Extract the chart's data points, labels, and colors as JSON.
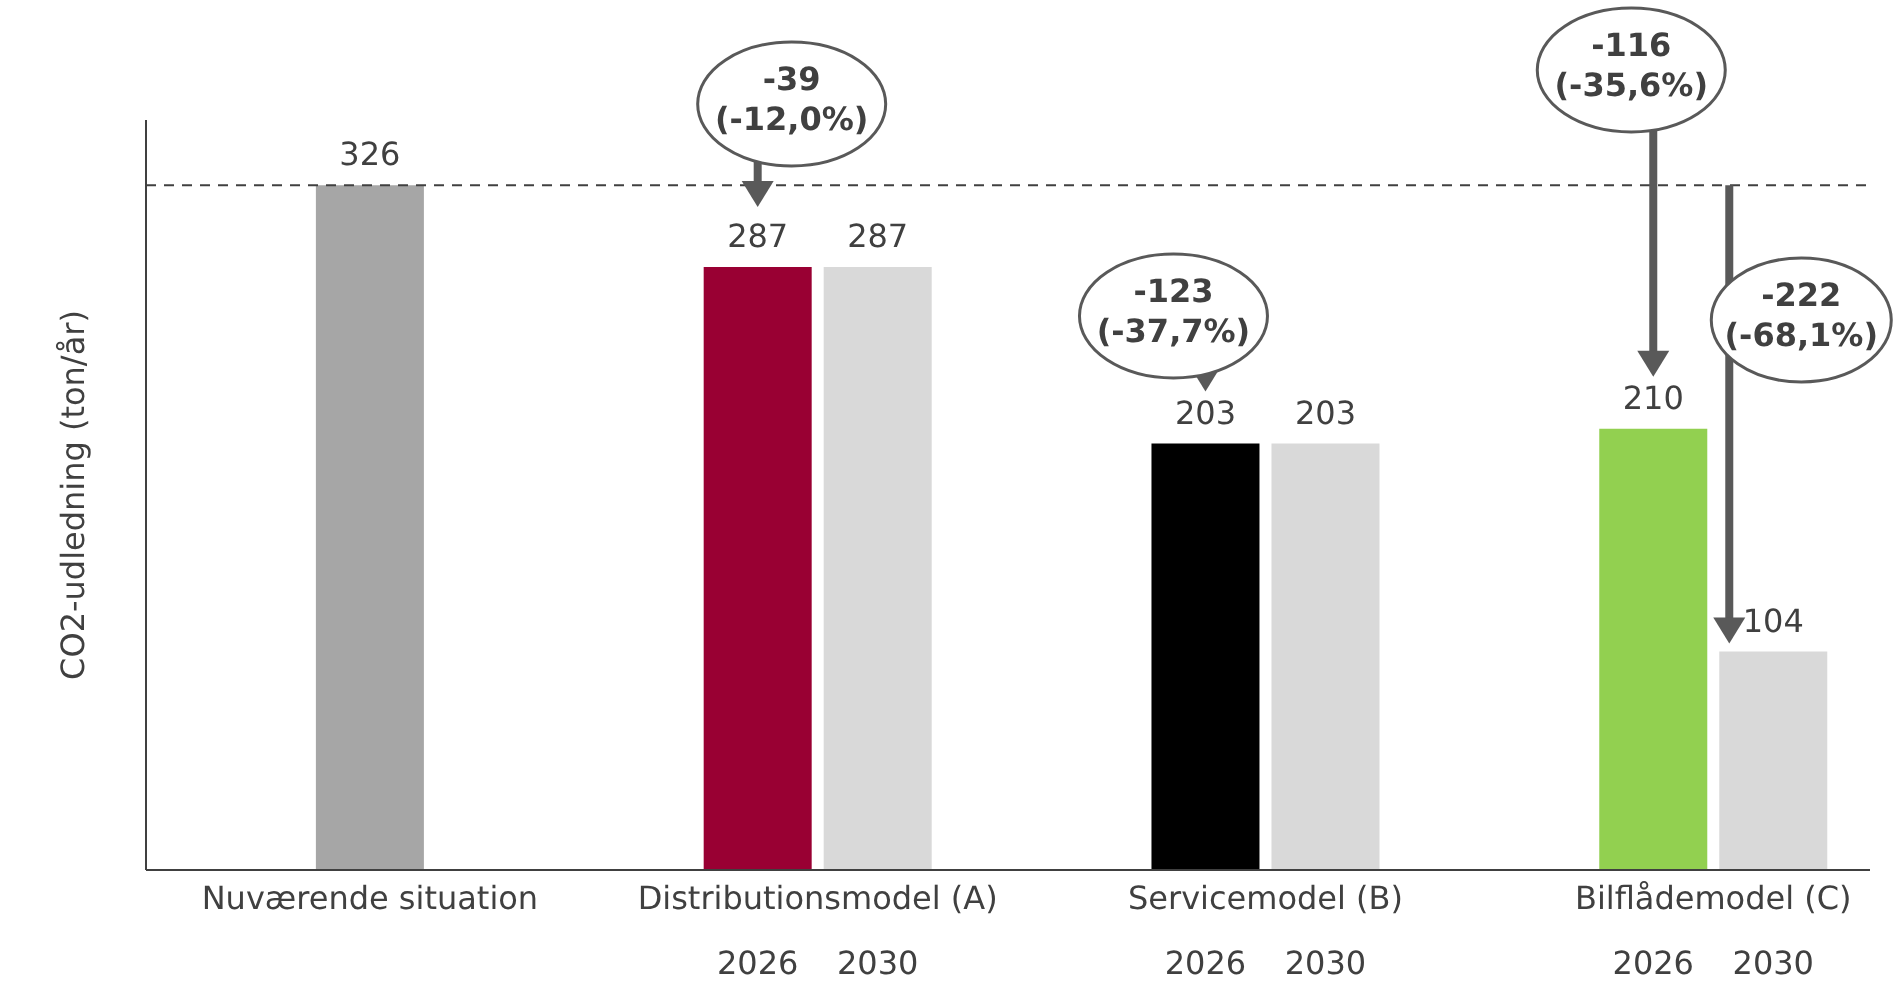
{
  "chart_data": {
    "type": "bar",
    "ylabel": "CO2-udledning (ton/år)",
    "categories": [
      "Nuværende situation",
      "Distributionsmodel (A)",
      "Servicemodel (B)",
      "Bilflådemodel (C)"
    ],
    "series": [
      {
        "color": "#a6a6a6",
        "values": [
          326,
          null,
          null,
          null
        ]
      },
      {
        "name": "2026",
        "color": "#000000",
        "colors": [
          "#000000",
          "#990033",
          "#000000",
          "#92d050"
        ],
        "values": [
          null,
          287,
          203,
          210
        ]
      },
      {
        "name": "2030",
        "color": "#d9d9d9",
        "values": [
          null,
          287,
          203,
          104
        ]
      }
    ],
    "ylim": [
      0,
      357
    ],
    "tick_labels": "x",
    "data_labels": true,
    "ref_lines": [
      {
        "axis": "y",
        "value": 326,
        "line_style": "dashed",
        "color": "#404040"
      }
    ],
    "annotations": [
      "-39 (-12,0%)",
      "-123 (-37,7%)",
      "-116 (-35,6%)",
      "-222 (-68,1%)"
    ]
  }
}
